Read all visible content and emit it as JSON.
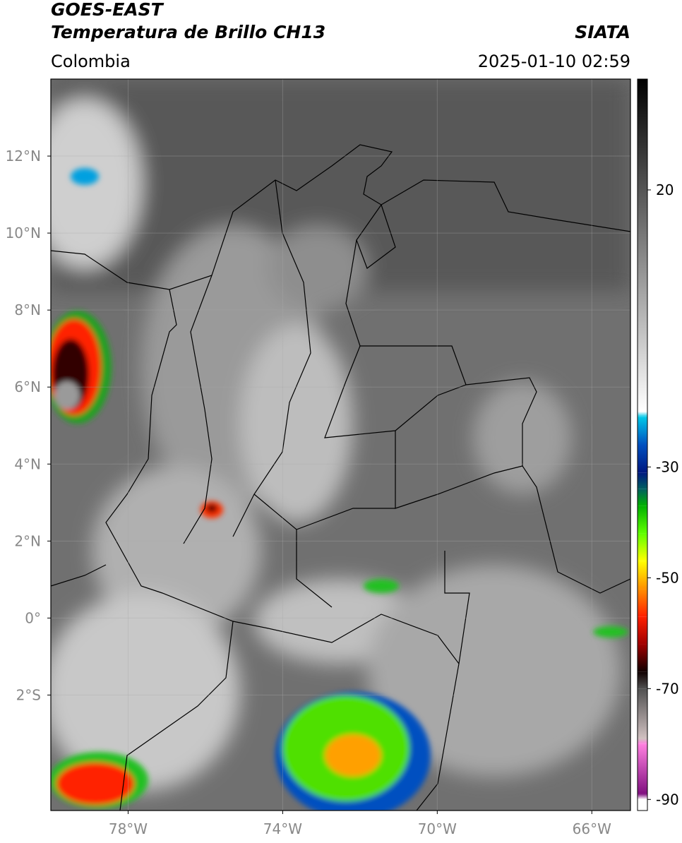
{
  "header": {
    "satellite": "GOES-EAST",
    "product": "Temperatura de Brillo CH13",
    "source": "SIATA",
    "region": "Colombia",
    "datetime": "2025-01-10 02:59"
  },
  "map": {
    "xlim": [
      -80,
      -65
    ],
    "ylim": [
      -5,
      14
    ],
    "xticks": [
      {
        "value": -78,
        "label": "78°W"
      },
      {
        "value": -74,
        "label": "74°W"
      },
      {
        "value": -70,
        "label": "70°W"
      },
      {
        "value": -66,
        "label": "66°W"
      }
    ],
    "yticks": [
      {
        "value": 12,
        "label": "12°N"
      },
      {
        "value": 10,
        "label": "10°N"
      },
      {
        "value": 8,
        "label": "8°N"
      },
      {
        "value": 6,
        "label": "6°N"
      },
      {
        "value": 4,
        "label": "4°N"
      },
      {
        "value": 2,
        "label": "2°N"
      },
      {
        "value": 0,
        "label": "0°"
      },
      {
        "value": -2,
        "label": "2°S"
      }
    ],
    "grid": true
  },
  "colorbar": {
    "lim": [
      -92,
      40
    ],
    "ticks": [
      20,
      -30,
      -50,
      -70,
      -90
    ],
    "stops": [
      {
        "value": 40,
        "color": "#000000"
      },
      {
        "value": -20,
        "color": "#ffffff"
      },
      {
        "value": -21,
        "color": "#00c8e8"
      },
      {
        "value": -26,
        "color": "#0050c0"
      },
      {
        "value": -31,
        "color": "#001880"
      },
      {
        "value": -34,
        "color": "#006060"
      },
      {
        "value": -37,
        "color": "#00b000"
      },
      {
        "value": -42,
        "color": "#60ff00"
      },
      {
        "value": -47,
        "color": "#ffff00"
      },
      {
        "value": -52,
        "color": "#ff9000"
      },
      {
        "value": -57,
        "color": "#ff2000"
      },
      {
        "value": -62,
        "color": "#a00000"
      },
      {
        "value": -67,
        "color": "#100000"
      },
      {
        "value": -70,
        "color": "#505050"
      },
      {
        "value": -79,
        "color": "#d0c0c0"
      },
      {
        "value": -80,
        "color": "#ff80e0"
      },
      {
        "value": -89,
        "color": "#801080"
      },
      {
        "value": -90,
        "color": "#ffffff"
      },
      {
        "value": -92,
        "color": "#ffffff"
      }
    ]
  }
}
